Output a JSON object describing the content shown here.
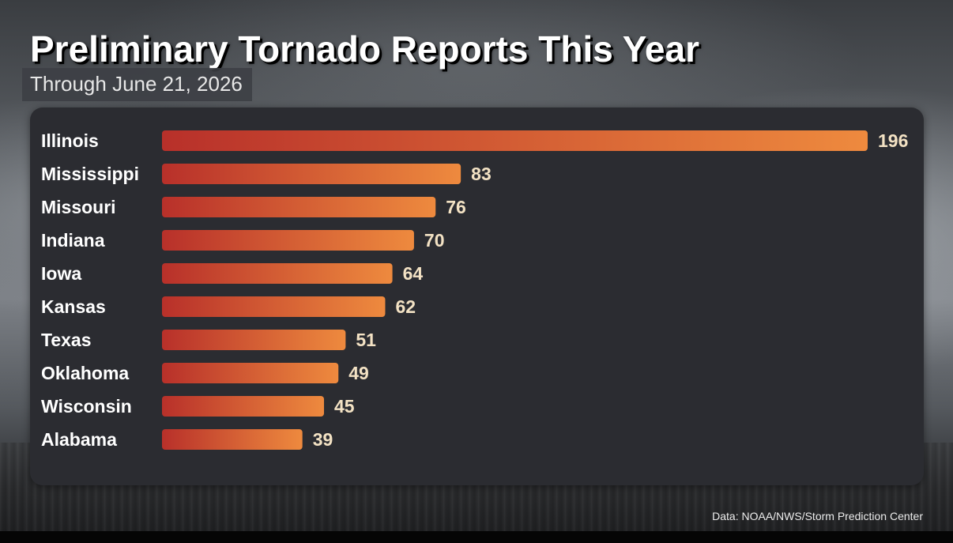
{
  "chart_data": {
    "type": "bar",
    "orientation": "horizontal",
    "title": "Preliminary Tornado Reports This Year",
    "subtitle": "Through June 21, 2026",
    "categories": [
      "Illinois",
      "Mississippi",
      "Missouri",
      "Indiana",
      "Iowa",
      "Kansas",
      "Texas",
      "Oklahoma",
      "Wisconsin",
      "Alabama"
    ],
    "values": [
      196,
      83,
      76,
      70,
      64,
      62,
      51,
      49,
      45,
      39
    ],
    "xlim": [
      0,
      196
    ],
    "grid": false,
    "legend": "none",
    "value_labels": true,
    "source": "Data: NOAA/NWS/Storm Prediction Center",
    "colors": {
      "bar_start": "#b8302a",
      "bar_end": "#ee8a3e",
      "label": "#ffffff",
      "value_label": "#f3e2c4",
      "panel": "#2b2c31"
    }
  }
}
